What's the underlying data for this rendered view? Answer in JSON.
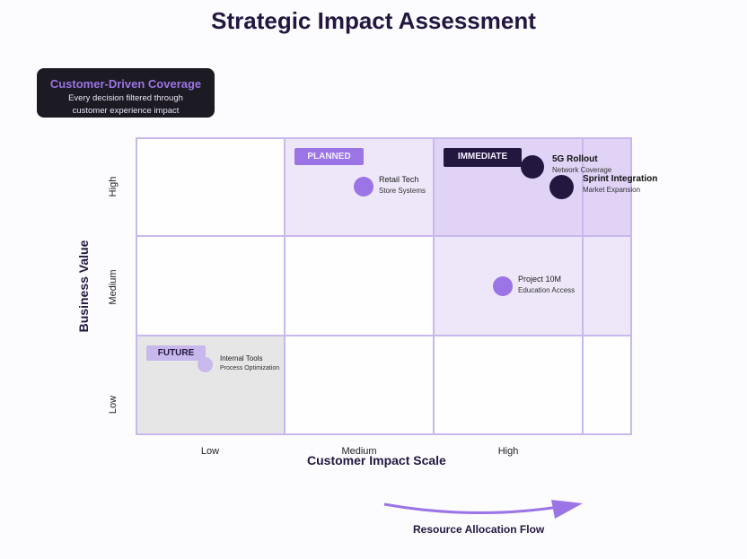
{
  "title": "Strategic Impact Assessment",
  "callout": {
    "title": "Customer-Driven Coverage",
    "line1": "Every decision filtered through",
    "line2": "customer experience impact"
  },
  "axes": {
    "y_title": "Business Value",
    "x_title": "Customer Impact Scale",
    "y_ticks": [
      "High",
      "Medium",
      "Low"
    ],
    "x_ticks": [
      "Low",
      "Medium",
      "High"
    ]
  },
  "zones": {
    "planned": "PLANNED",
    "immediate": "IMMEDIATE",
    "future": "FUTURE"
  },
  "projects": [
    {
      "name": "5G Rollout",
      "sub": "Network Coverage",
      "tier": "immediate"
    },
    {
      "name": "Sprint Integration",
      "sub": "Market Expansion",
      "tier": "immediate"
    },
    {
      "name": "Retail Tech",
      "sub": "Store Systems",
      "tier": "planned"
    },
    {
      "name": "Project 10M",
      "sub": "Education Access",
      "tier": "planned"
    },
    {
      "name": "Internal Tools",
      "sub": "Process Optimization",
      "tier": "future"
    }
  ],
  "flow_label": "Resource Allocation Flow",
  "colors": {
    "accent": "#9b74e6",
    "dark": "#231740",
    "light": "#d4c3f2",
    "grid": "#c9b8ec"
  }
}
